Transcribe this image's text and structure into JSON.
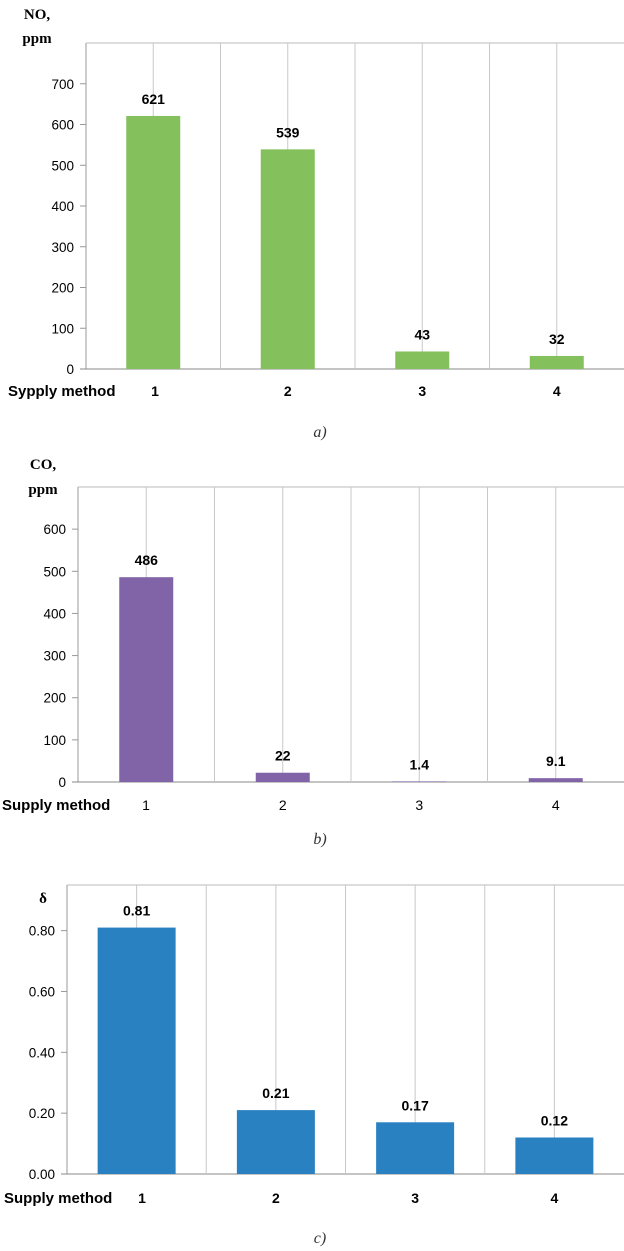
{
  "chart_data": [
    {
      "type": "bar",
      "ylabel": [
        "NO,",
        "ppm"
      ],
      "xlabel": "Sypply  method",
      "categories": [
        "1",
        "2",
        "3",
        "4"
      ],
      "values": [
        621,
        539,
        43,
        32
      ],
      "data_labels": [
        "621",
        "539",
        "43",
        "32"
      ],
      "yticks": [
        "0",
        "100",
        "200",
        "300",
        "400",
        "500",
        "600",
        "700"
      ],
      "ylim": [
        0,
        800
      ],
      "grid": true,
      "color": "#84c15c",
      "caption": "a)"
    },
    {
      "type": "bar",
      "ylabel": [
        "CO,",
        "ppm"
      ],
      "xlabel": "Supply method",
      "categories": [
        "1",
        "2",
        "3",
        "4"
      ],
      "values": [
        486,
        22,
        1.4,
        9.1
      ],
      "data_labels": [
        "486",
        "22",
        "1.4",
        "9.1"
      ],
      "yticks": [
        "0",
        "100",
        "200",
        "300",
        "400",
        "500",
        "600"
      ],
      "ylim": [
        0,
        700
      ],
      "grid": true,
      "color": "#8064a7",
      "caption": "b)"
    },
    {
      "type": "bar",
      "ylabel": [
        "δ"
      ],
      "xlabel": "Supply method",
      "categories": [
        "1",
        "2",
        "3",
        "4"
      ],
      "values": [
        0.81,
        0.21,
        0.17,
        0.12
      ],
      "data_labels": [
        "0.81",
        "0.21",
        "0.17",
        "0.12"
      ],
      "yticks": [
        "0.00",
        "0.20",
        "0.40",
        "0.60",
        "0.80"
      ],
      "ylim": [
        0,
        0.95
      ],
      "grid": true,
      "color": "#2a81c1",
      "caption": "c)"
    }
  ]
}
